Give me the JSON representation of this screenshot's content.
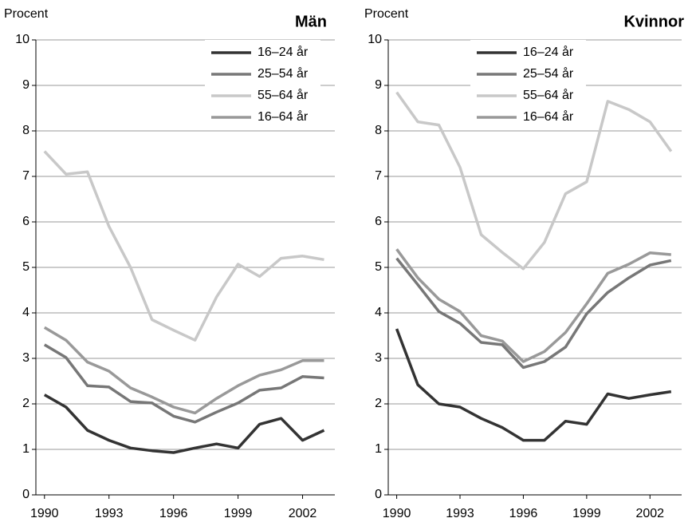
{
  "chart_data": [
    {
      "type": "line",
      "title": "Män",
      "y_label": "Procent",
      "x": [
        1990,
        1991,
        1992,
        1993,
        1994,
        1995,
        1996,
        1997,
        1998,
        1999,
        2000,
        2001,
        2002,
        2003
      ],
      "xlim": [
        1989.6,
        2003.5
      ],
      "xticks": [
        1990,
        1993,
        1996,
        1999,
        2002
      ],
      "ylim": [
        0,
        10
      ],
      "yticks": [
        0,
        1,
        2,
        3,
        4,
        5,
        6,
        7,
        8,
        9,
        10
      ],
      "grid": true,
      "legend": "upper right",
      "series": [
        {
          "name": "16–24 år",
          "color": "#333333",
          "values": [
            2.2,
            1.93,
            1.42,
            1.2,
            1.03,
            0.97,
            0.93,
            1.03,
            1.12,
            1.03,
            1.55,
            1.68,
            1.2,
            1.42
          ]
        },
        {
          "name": "25–54 år",
          "color": "#777777",
          "values": [
            3.3,
            3.02,
            2.4,
            2.37,
            2.05,
            2.02,
            1.73,
            1.6,
            1.82,
            2.02,
            2.3,
            2.35,
            2.6,
            2.57
          ]
        },
        {
          "name": "55–64 år",
          "color": "#c8c8c8",
          "values": [
            7.55,
            7.05,
            7.1,
            5.9,
            5.0,
            3.85,
            3.62,
            3.4,
            4.35,
            5.07,
            4.8,
            5.2,
            5.25,
            5.17
          ]
        },
        {
          "name": "16–64 år",
          "color": "#999999",
          "values": [
            3.68,
            3.4,
            2.92,
            2.72,
            2.35,
            2.15,
            1.93,
            1.8,
            2.12,
            2.4,
            2.63,
            2.75,
            2.95,
            2.95
          ]
        }
      ]
    },
    {
      "type": "line",
      "title": "Kvinnor",
      "y_label": "Procent",
      "x": [
        1990,
        1991,
        1992,
        1993,
        1994,
        1995,
        1996,
        1997,
        1998,
        1999,
        2000,
        2001,
        2002,
        2003
      ],
      "xlim": [
        1989.6,
        2003.5
      ],
      "xticks": [
        1990,
        1993,
        1996,
        1999,
        2002
      ],
      "ylim": [
        0,
        10
      ],
      "yticks": [
        0,
        1,
        2,
        3,
        4,
        5,
        6,
        7,
        8,
        9,
        10
      ],
      "grid": true,
      "legend": "upper right",
      "series": [
        {
          "name": "16–24 år",
          "color": "#333333",
          "values": [
            3.65,
            2.42,
            2.0,
            1.93,
            1.68,
            1.48,
            1.2,
            1.2,
            1.62,
            1.55,
            2.22,
            2.12,
            2.2,
            2.27
          ]
        },
        {
          "name": "25–54 år",
          "color": "#777777",
          "values": [
            5.2,
            4.62,
            4.03,
            3.77,
            3.35,
            3.3,
            2.8,
            2.93,
            3.25,
            3.98,
            4.45,
            4.77,
            5.05,
            5.15
          ]
        },
        {
          "name": "55–64 år",
          "color": "#c8c8c8",
          "values": [
            8.85,
            8.2,
            8.13,
            7.2,
            5.72,
            5.33,
            4.97,
            5.55,
            6.62,
            6.88,
            8.65,
            8.47,
            8.2,
            7.55
          ]
        },
        {
          "name": "16–64 år",
          "color": "#999999",
          "values": [
            5.4,
            4.77,
            4.3,
            4.03,
            3.5,
            3.38,
            2.93,
            3.15,
            3.57,
            4.2,
            4.87,
            5.07,
            5.32,
            5.28
          ]
        }
      ]
    }
  ]
}
